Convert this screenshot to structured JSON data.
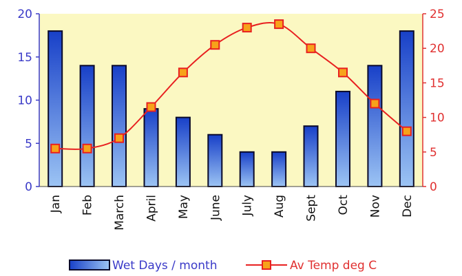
{
  "chart_data": {
    "type": "bar",
    "categories": [
      "Jan",
      "Feb",
      "March",
      "April",
      "May",
      "June",
      "July",
      "Aug",
      "Sept",
      "Oct",
      "Nov",
      "Dec"
    ],
    "series": [
      {
        "name": "Wet Days / month",
        "type": "bar",
        "axis": "left",
        "values": [
          18,
          14,
          14,
          9,
          8,
          6,
          4,
          4,
          7,
          11,
          14,
          18
        ]
      },
      {
        "name": "Av Temp deg C",
        "type": "line",
        "axis": "right",
        "values": [
          5.5,
          5.5,
          7,
          11.5,
          16.5,
          20.5,
          23,
          23.5,
          20,
          16.5,
          12,
          8
        ]
      }
    ],
    "y_left": {
      "range": [
        0,
        20
      ],
      "ticks": [
        "0",
        "5",
        "10",
        "15",
        "20"
      ]
    },
    "y_right": {
      "range": [
        0,
        25
      ],
      "ticks": [
        "0",
        "5",
        "10",
        "15",
        "20",
        "25"
      ]
    },
    "title": "",
    "xlabel": "",
    "ylabel": "",
    "legend": "bottom",
    "grid": false,
    "colors": {
      "plot_background": "#fbf8c2",
      "bar_top": "#1840c8",
      "bar_bottom": "#9cc4f4",
      "bar_outline": "#0a0a2a",
      "line": "#e82020",
      "marker_fill": "#f7a21a",
      "marker_stroke": "#e82020",
      "left_axis_text": "#3a3ac8",
      "right_axis_text": "#e03030"
    }
  }
}
